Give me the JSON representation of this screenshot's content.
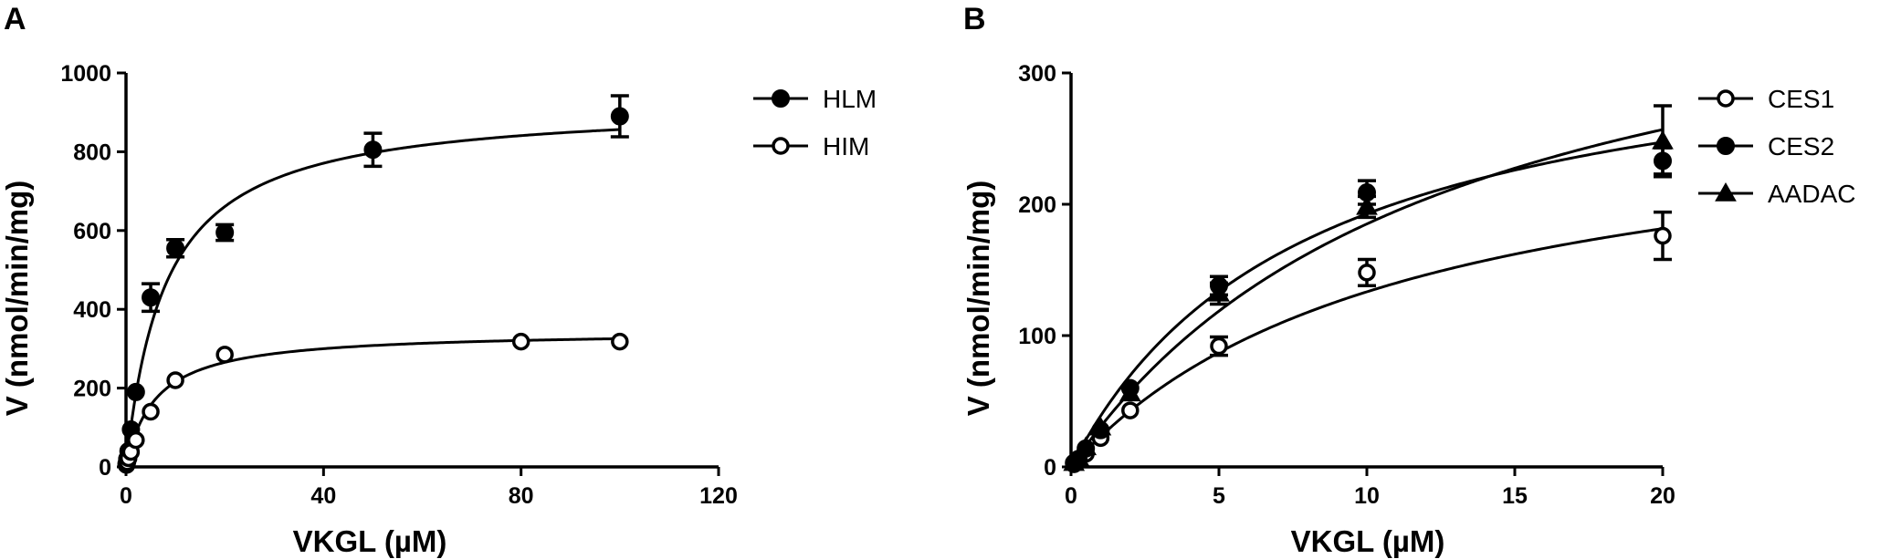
{
  "chart_data": [
    {
      "panel_label": "A",
      "type": "scatter",
      "xlabel": "VKGL (µM)",
      "ylabel": "V (nmol/min/mg)",
      "xlim": [
        0,
        120
      ],
      "ylim": [
        0,
        1000
      ],
      "xticks": [
        0,
        40,
        80,
        120
      ],
      "yticks": [
        0,
        200,
        400,
        600,
        800,
        1000
      ],
      "legend_position": "top-right",
      "grid": false,
      "series": [
        {
          "name": "HLM",
          "marker": "filled-circle",
          "x": [
            0.1,
            0.25,
            0.5,
            1,
            2,
            5,
            10,
            20,
            50,
            100
          ],
          "y": [
            8,
            20,
            40,
            95,
            190,
            430,
            555,
            595,
            805,
            890
          ],
          "err": [
            0,
            0,
            0,
            0,
            0,
            35,
            22,
            20,
            42,
            52
          ],
          "fit": {
            "model": "michaelis-menten",
            "vmax": 925,
            "km": 8.0
          }
        },
        {
          "name": "HIM",
          "marker": "open-circle",
          "x": [
            0.1,
            0.25,
            0.5,
            1,
            2,
            5,
            10,
            20,
            80,
            100
          ],
          "y": [
            5,
            12,
            22,
            38,
            68,
            140,
            220,
            285,
            318,
            318
          ],
          "err": [
            0,
            0,
            0,
            0,
            0,
            0,
            0,
            0,
            0,
            0
          ],
          "fit": {
            "model": "michaelis-menten",
            "vmax": 345,
            "km": 6.0
          }
        }
      ]
    },
    {
      "panel_label": "B",
      "type": "scatter",
      "xlabel": "VKGL (µM)",
      "ylabel": "V (nmol/min/mg)",
      "xlim": [
        0,
        20
      ],
      "ylim": [
        0,
        300
      ],
      "xticks": [
        0,
        5,
        10,
        15,
        20
      ],
      "yticks": [
        0,
        100,
        200,
        300
      ],
      "legend_position": "top-right",
      "grid": false,
      "series": [
        {
          "name": "CES1",
          "marker": "open-circle",
          "x": [
            0.1,
            0.25,
            0.5,
            1,
            2,
            5,
            10,
            20
          ],
          "y": [
            2,
            5,
            10,
            22,
            43,
            92,
            148,
            176
          ],
          "err": [
            0,
            0,
            0,
            0,
            0,
            7,
            10,
            18
          ],
          "fit": {
            "model": "michaelis-menten",
            "vmax": 284,
            "km": 11.3
          }
        },
        {
          "name": "CES2",
          "marker": "filled-circle",
          "x": [
            0.1,
            0.25,
            0.5,
            1,
            2,
            5,
            10,
            20
          ],
          "y": [
            3,
            6,
            14,
            28,
            60,
            138,
            209,
            233
          ],
          "err": [
            0,
            0,
            0,
            0,
            0,
            7,
            9,
            10
          ],
          "fit": {
            "model": "michaelis-menten",
            "vmax": 345,
            "km": 7.9
          }
        },
        {
          "name": "AADAC",
          "marker": "filled-triangle",
          "x": [
            0.1,
            0.25,
            0.5,
            1,
            2,
            5,
            10,
            20
          ],
          "y": [
            3,
            7,
            15,
            30,
            56,
            132,
            198,
            248
          ],
          "err": [
            0,
            0,
            0,
            0,
            0,
            8,
            8,
            27
          ],
          "fit": {
            "model": "michaelis-menten",
            "vmax": 420,
            "km": 12.7
          }
        }
      ]
    }
  ]
}
